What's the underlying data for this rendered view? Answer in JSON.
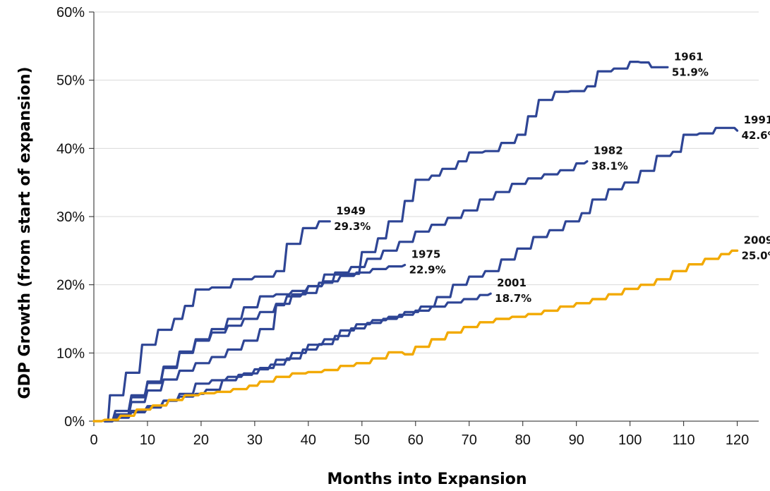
{
  "chart_data": {
    "type": "line",
    "xlabel": "Months into Expansion",
    "ylabel": "GDP Growth (from start of expansion)",
    "xlim": [
      0,
      124
    ],
    "ylim": [
      0,
      60
    ],
    "x_ticks": [
      "0",
      "10",
      "20",
      "30",
      "40",
      "50",
      "60",
      "70",
      "80",
      "90",
      "100",
      "110",
      "120"
    ],
    "y_ticks": [
      "0%",
      "10%",
      "20%",
      "30%",
      "40%",
      "50%",
      "60%"
    ],
    "grid": "horizontal",
    "legend": "none",
    "colors": {
      "historical": "#2e4595",
      "current": "#f2a900"
    },
    "series": [
      {
        "name": "1949",
        "label_lines": [
          "1949",
          "29.3%"
        ],
        "color": "#2e4595",
        "points": [
          [
            2,
            0
          ],
          [
            3,
            3.8
          ],
          [
            6,
            7.1
          ],
          [
            9,
            11.2
          ],
          [
            12,
            13.4
          ],
          [
            15,
            15.0
          ],
          [
            17,
            16.9
          ],
          [
            19,
            19.3
          ],
          [
            22,
            19.6
          ],
          [
            26,
            20.8
          ],
          [
            30,
            21.2
          ],
          [
            34,
            22.0
          ],
          [
            36,
            26.0
          ],
          [
            39,
            28.3
          ],
          [
            42,
            29.3
          ],
          [
            44,
            29.3
          ]
        ]
      },
      {
        "name": "1961",
        "label_lines": [
          "1961",
          "51.9%"
        ],
        "color": "#2e4595",
        "points": [
          [
            2,
            0
          ],
          [
            4,
            1.5
          ],
          [
            7,
            3.8
          ],
          [
            10,
            5.6
          ],
          [
            13,
            7.8
          ],
          [
            16,
            10.0
          ],
          [
            19,
            11.8
          ],
          [
            22,
            13.0
          ],
          [
            25,
            14.0
          ],
          [
            28,
            15.0
          ],
          [
            31,
            16.0
          ],
          [
            34,
            17.2
          ],
          [
            37,
            18.6
          ],
          [
            40,
            19.8
          ],
          [
            43,
            21.5
          ],
          [
            47,
            21.6
          ],
          [
            50,
            24.8
          ],
          [
            53,
            26.8
          ],
          [
            55,
            29.3
          ],
          [
            58,
            32.3
          ],
          [
            60,
            35.4
          ],
          [
            63,
            36.0
          ],
          [
            65,
            37.0
          ],
          [
            68,
            38.1
          ],
          [
            70,
            39.4
          ],
          [
            73,
            39.6
          ],
          [
            76,
            40.8
          ],
          [
            79,
            42.0
          ],
          [
            81,
            44.7
          ],
          [
            83,
            47.1
          ],
          [
            86,
            48.3
          ],
          [
            89,
            48.4
          ],
          [
            92,
            49.1
          ],
          [
            94,
            51.3
          ],
          [
            97,
            51.7
          ],
          [
            100,
            52.7
          ],
          [
            102,
            52.6
          ],
          [
            104,
            51.9
          ],
          [
            107,
            51.9
          ]
        ]
      },
      {
        "name": "1975",
        "label_lines": [
          "1975",
          "22.9%"
        ],
        "color": "#2e4595",
        "points": [
          [
            2,
            0
          ],
          [
            4,
            1.0
          ],
          [
            7,
            3.5
          ],
          [
            10,
            5.8
          ],
          [
            13,
            8.0
          ],
          [
            16,
            10.2
          ],
          [
            19,
            12.0
          ],
          [
            22,
            13.5
          ],
          [
            25,
            15.0
          ],
          [
            28,
            16.7
          ],
          [
            31,
            18.3
          ],
          [
            34,
            18.6
          ],
          [
            37,
            19.1
          ],
          [
            40,
            19.8
          ],
          [
            43,
            20.5
          ],
          [
            46,
            21.3
          ],
          [
            49,
            21.8
          ],
          [
            52,
            22.3
          ],
          [
            55,
            22.7
          ],
          [
            58,
            22.9
          ]
        ]
      },
      {
        "name": "1982",
        "label_lines": [
          "1982",
          "38.1%"
        ],
        "color": "#2e4595",
        "points": [
          [
            2,
            0
          ],
          [
            4,
            0.8
          ],
          [
            7,
            2.8
          ],
          [
            10,
            4.5
          ],
          [
            13,
            6.1
          ],
          [
            16,
            7.4
          ],
          [
            19,
            8.5
          ],
          [
            22,
            9.4
          ],
          [
            25,
            10.5
          ],
          [
            28,
            11.8
          ],
          [
            31,
            13.5
          ],
          [
            34,
            17.0
          ],
          [
            36,
            18.3
          ],
          [
            39,
            18.8
          ],
          [
            42,
            20.3
          ],
          [
            45,
            21.8
          ],
          [
            48,
            22.6
          ],
          [
            51,
            23.8
          ],
          [
            54,
            25.0
          ],
          [
            57,
            26.3
          ],
          [
            60,
            27.8
          ],
          [
            63,
            28.8
          ],
          [
            66,
            29.8
          ],
          [
            69,
            30.9
          ],
          [
            72,
            32.5
          ],
          [
            75,
            33.6
          ],
          [
            78,
            34.8
          ],
          [
            81,
            35.6
          ],
          [
            84,
            36.2
          ],
          [
            87,
            36.8
          ],
          [
            90,
            37.8
          ],
          [
            92,
            38.1
          ]
        ]
      },
      {
        "name": "1991",
        "label_lines": [
          "1991",
          "42.6%"
        ],
        "color": "#2e4595",
        "points": [
          [
            2,
            0
          ],
          [
            4,
            0.5
          ],
          [
            7,
            1.3
          ],
          [
            10,
            2.0
          ],
          [
            13,
            3.0
          ],
          [
            16,
            4.0
          ],
          [
            19,
            5.5
          ],
          [
            22,
            6.0
          ],
          [
            25,
            6.5
          ],
          [
            28,
            7.0
          ],
          [
            31,
            7.8
          ],
          [
            34,
            9.0
          ],
          [
            37,
            10.0
          ],
          [
            40,
            11.2
          ],
          [
            43,
            12.0
          ],
          [
            46,
            13.3
          ],
          [
            49,
            14.2
          ],
          [
            52,
            14.8
          ],
          [
            55,
            15.3
          ],
          [
            58,
            16.0
          ],
          [
            61,
            16.8
          ],
          [
            64,
            18.2
          ],
          [
            67,
            20.0
          ],
          [
            70,
            21.2
          ],
          [
            73,
            22.0
          ],
          [
            76,
            23.7
          ],
          [
            79,
            25.3
          ],
          [
            82,
            27.0
          ],
          [
            85,
            28.0
          ],
          [
            88,
            29.3
          ],
          [
            91,
            30.5
          ],
          [
            93,
            32.5
          ],
          [
            96,
            34.0
          ],
          [
            99,
            35.0
          ],
          [
            102,
            36.7
          ],
          [
            105,
            38.9
          ],
          [
            108,
            39.5
          ],
          [
            110,
            42.0
          ],
          [
            113,
            42.2
          ],
          [
            116,
            43.0
          ],
          [
            118,
            43.0
          ],
          [
            120,
            42.6
          ]
        ]
      },
      {
        "name": "2001",
        "label_lines": [
          "2001",
          "18.7%"
        ],
        "color": "#2e4595",
        "points": [
          [
            2,
            0
          ],
          [
            4,
            0.7
          ],
          [
            7,
            1.5
          ],
          [
            10,
            2.2
          ],
          [
            13,
            3.0
          ],
          [
            16,
            3.6
          ],
          [
            19,
            4.0
          ],
          [
            21,
            4.6
          ],
          [
            24,
            6.0
          ],
          [
            27,
            6.8
          ],
          [
            30,
            7.6
          ],
          [
            33,
            8.3
          ],
          [
            36,
            9.2
          ],
          [
            39,
            10.5
          ],
          [
            42,
            11.3
          ],
          [
            45,
            12.5
          ],
          [
            48,
            13.6
          ],
          [
            51,
            14.4
          ],
          [
            54,
            15.0
          ],
          [
            57,
            15.6
          ],
          [
            60,
            16.2
          ],
          [
            63,
            16.8
          ],
          [
            66,
            17.4
          ],
          [
            69,
            17.9
          ],
          [
            72,
            18.5
          ],
          [
            74,
            18.7
          ]
        ]
      },
      {
        "name": "2009",
        "label_lines": [
          "2009",
          "25.0%"
        ],
        "color": "#f2a900",
        "points": [
          [
            0,
            0
          ],
          [
            2,
            0.2
          ],
          [
            5,
            0.8
          ],
          [
            8,
            1.7
          ],
          [
            11,
            2.3
          ],
          [
            14,
            3.1
          ],
          [
            17,
            3.8
          ],
          [
            20,
            4.1
          ],
          [
            23,
            4.3
          ],
          [
            26,
            4.7
          ],
          [
            29,
            5.2
          ],
          [
            31,
            5.8
          ],
          [
            34,
            6.5
          ],
          [
            37,
            7.0
          ],
          [
            40,
            7.2
          ],
          [
            43,
            7.5
          ],
          [
            46,
            8.1
          ],
          [
            49,
            8.5
          ],
          [
            52,
            9.2
          ],
          [
            55,
            10.1
          ],
          [
            58,
            9.8
          ],
          [
            60,
            10.9
          ],
          [
            63,
            12.0
          ],
          [
            66,
            13.0
          ],
          [
            69,
            13.8
          ],
          [
            72,
            14.5
          ],
          [
            75,
            15.0
          ],
          [
            78,
            15.3
          ],
          [
            81,
            15.7
          ],
          [
            84,
            16.2
          ],
          [
            87,
            16.8
          ],
          [
            90,
            17.3
          ],
          [
            93,
            17.9
          ],
          [
            96,
            18.6
          ],
          [
            99,
            19.4
          ],
          [
            102,
            20.0
          ],
          [
            105,
            20.8
          ],
          [
            108,
            22.0
          ],
          [
            111,
            23.0
          ],
          [
            114,
            23.8
          ],
          [
            117,
            24.5
          ],
          [
            119,
            25.0
          ],
          [
            120,
            25.0
          ]
        ]
      }
    ]
  }
}
